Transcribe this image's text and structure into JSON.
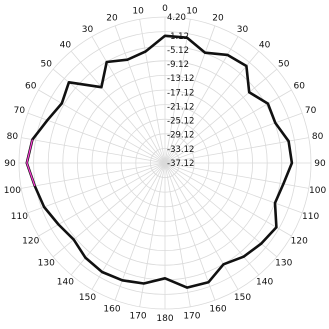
{
  "chart_data": {
    "type": "line",
    "subtype": "polar",
    "title": "",
    "angle_tick_labels": [
      "0",
      "10",
      "20",
      "30",
      "40",
      "50",
      "60",
      "70",
      "80",
      "90",
      "100",
      "110",
      "120",
      "130",
      "140",
      "150",
      "160",
      "170",
      "180",
      "170",
      "160",
      "150",
      "140",
      "130",
      "120",
      "110",
      "100",
      "90",
      "80",
      "70",
      "60",
      "50",
      "40",
      "30",
      "20",
      "10"
    ],
    "radial_tick_labels": [
      "4.20",
      "-1.12",
      "-5.12",
      "-9.12",
      "-13.12",
      "-17.12",
      "-21.12",
      "-25.12",
      "-29.12",
      "-33.12",
      "-37.12"
    ],
    "rlim": [
      -37.12,
      4.2
    ],
    "grid": true,
    "angle_unit": "degrees",
    "zero_direction": "top",
    "series": [
      {
        "color": "#111111",
        "highlight_color": "#ff3fd8",
        "theta": [
          0,
          10,
          20,
          30,
          40,
          50,
          60,
          70,
          80,
          90,
          100,
          110,
          120,
          130,
          140,
          150,
          160,
          170,
          180,
          190,
          200,
          210,
          220,
          230,
          240,
          250,
          260,
          270,
          280,
          290,
          300,
          310,
          320,
          330,
          340,
          350,
          360
        ],
        "r": [
          -1.12,
          -1.12,
          -3.9,
          -1.8,
          -1.3,
          -6.0,
          -3.5,
          -3.9,
          -1.6,
          -1.2,
          -3.1,
          -4.0,
          -0.7,
          -1.6,
          -2.5,
          -4.0,
          -1.2,
          -1.3,
          -4.5,
          -2.5,
          -1.8,
          -1.5,
          -2.1,
          -3.4,
          -2.3,
          -0.7,
          0.3,
          2.0,
          1.0,
          -1.7,
          -3.4,
          -1.6,
          -9.1,
          -4.1,
          -6.0,
          -5.12,
          -1.12
        ],
        "highlight_theta": [
          255,
          280
        ]
      }
    ]
  }
}
